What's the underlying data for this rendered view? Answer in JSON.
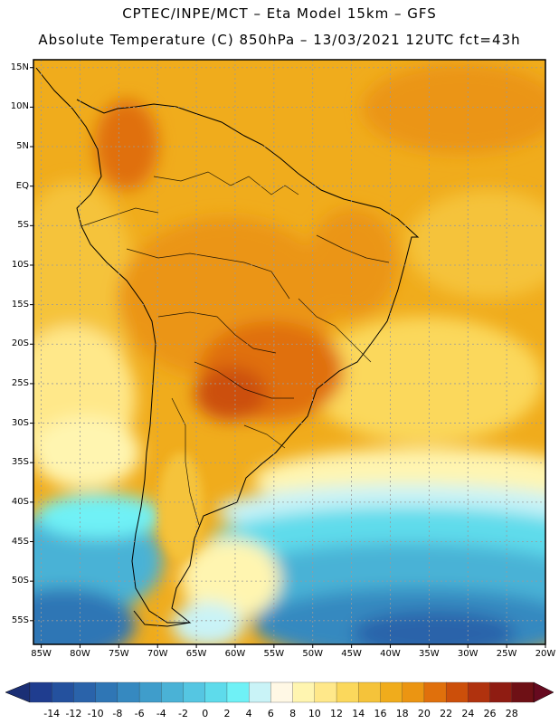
{
  "header": {
    "line1": "CPTEC/INPE/MCT –  Eta Model 15km – GFS",
    "line2": "Absolute Temperature (C) 850hPa – 13/03/2021 12UTC fct=43h"
  },
  "map": {
    "lat_labels": [
      "15N",
      "10N",
      "5N",
      "EQ",
      "5S",
      "10S",
      "15S",
      "20S",
      "25S",
      "30S",
      "35S",
      "40S",
      "45S",
      "50S",
      "55S"
    ],
    "lon_labels": [
      "85W",
      "80W",
      "75W",
      "70W",
      "65W",
      "60W",
      "55W",
      "50W",
      "45W",
      "40W",
      "35W",
      "30W",
      "25W",
      "20W"
    ],
    "lat_range": [
      -58,
      16
    ],
    "lon_range": [
      -86,
      -20
    ]
  },
  "colorbar": {
    "labels": [
      "-14",
      "-12",
      "-10",
      "-8",
      "-6",
      "-4",
      "-2",
      "0",
      "2",
      "4",
      "6",
      "8",
      "10",
      "12",
      "14",
      "16",
      "18",
      "20",
      "22",
      "24",
      "26",
      "28"
    ],
    "colors": [
      "#1f3d8f",
      "#24519e",
      "#2a63aa",
      "#2f76b5",
      "#3689c0",
      "#3f9dcb",
      "#4ab2d6",
      "#55c6e2",
      "#5edbeb",
      "#6ff1f6",
      "#c9f3f7",
      "#fff8e5",
      "#fff5b0",
      "#ffe88a",
      "#fbd85c",
      "#f5c33a",
      "#f0ac1c",
      "#eb9512",
      "#e0700c",
      "#cc4f0a",
      "#b0320e",
      "#8f1c12",
      "#6e1015"
    ],
    "low_arrow_color": "#1b2f75",
    "high_arrow_color": "#660a1f"
  }
}
